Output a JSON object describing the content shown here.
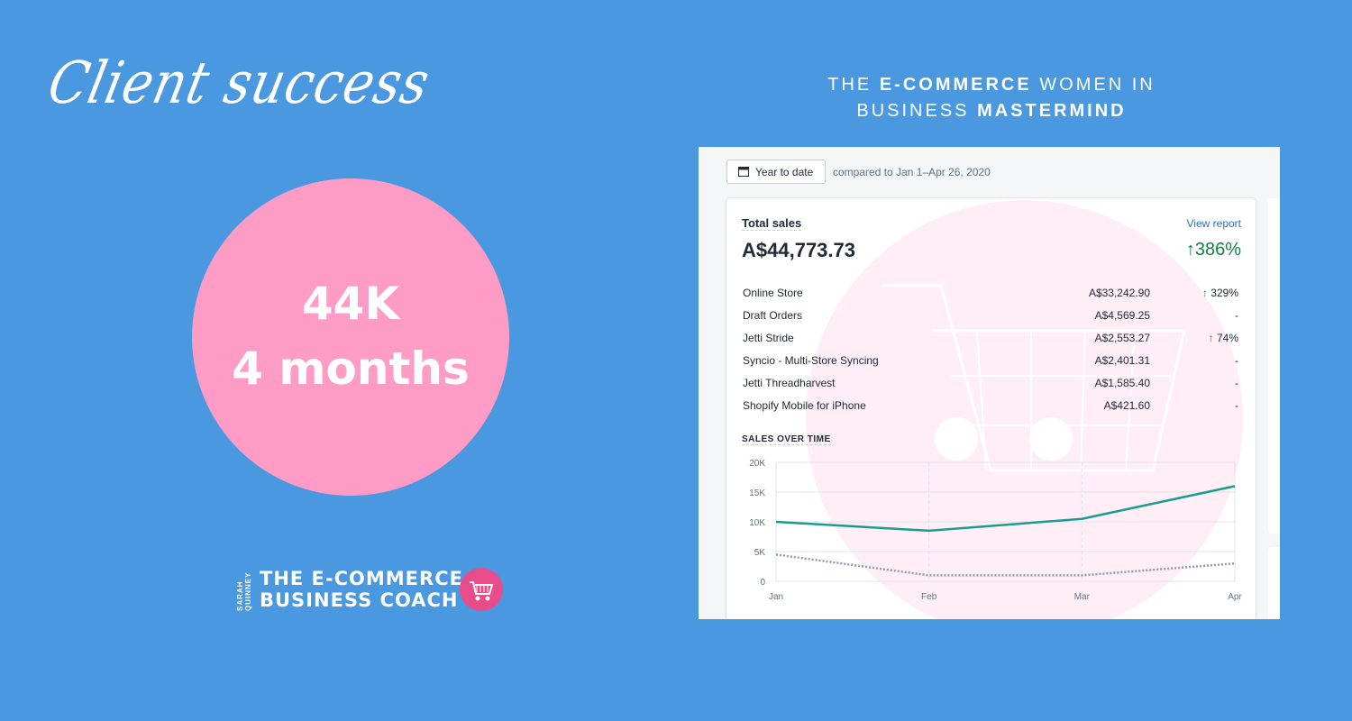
{
  "left": {
    "script_title": "Client success",
    "circle": {
      "line1": "44K",
      "line2": "4 months",
      "color": "#fe9cc6"
    },
    "logo": {
      "vertical": "SARAH QUINNEY",
      "line1": "THE E-COMMERCE",
      "line2": "BUSINESS COACH",
      "badge_icon": "shopping-cart-icon"
    }
  },
  "headline": {
    "pre": "THE ",
    "bold1": "E-COMMERCE",
    "mid": " WOMEN IN BUSINESS ",
    "bold2": "MASTERMIND"
  },
  "dashboard": {
    "date_button": "Year to date",
    "compare_text": "compared to Jan 1–Apr 26, 2020",
    "card": {
      "title": "Total sales",
      "view_report": "View report",
      "total": "A$44,773.73",
      "total_change": "↑386%",
      "rows": [
        {
          "name": "Online Store",
          "amount": "A$33,242.90",
          "change": "329%",
          "up": true
        },
        {
          "name": "Draft Orders",
          "amount": "A$4,569.25",
          "change": "-",
          "up": false
        },
        {
          "name": "Jetti Stride",
          "amount": "A$2,553.27",
          "change": "74%",
          "up": true
        },
        {
          "name": "Syncio - Multi-Store Syncing",
          "amount": "A$2,401.31",
          "change": "-",
          "up": false
        },
        {
          "name": "Jetti Threadharvest",
          "amount": "A$1,585.40",
          "change": "-",
          "up": false
        },
        {
          "name": "Shopify Mobile for iPhone",
          "amount": "A$421.60",
          "change": "-",
          "up": false
        }
      ],
      "sales_over_time_title": "SALES OVER TIME"
    }
  },
  "chart_data": {
    "type": "line",
    "x": [
      "Jan",
      "Feb",
      "Mar",
      "Apr"
    ],
    "y_ticks": [
      "0",
      "5K",
      "10K",
      "15K",
      "20K"
    ],
    "ylim": [
      0,
      20000
    ],
    "series": [
      {
        "values": [
          10000,
          8500,
          10500,
          16000
        ],
        "color": "#1a9c8e",
        "style": "solid"
      },
      {
        "values": [
          4500,
          1000,
          1000,
          3000
        ],
        "color": "#8a9bb0",
        "style": "dotted"
      }
    ]
  }
}
